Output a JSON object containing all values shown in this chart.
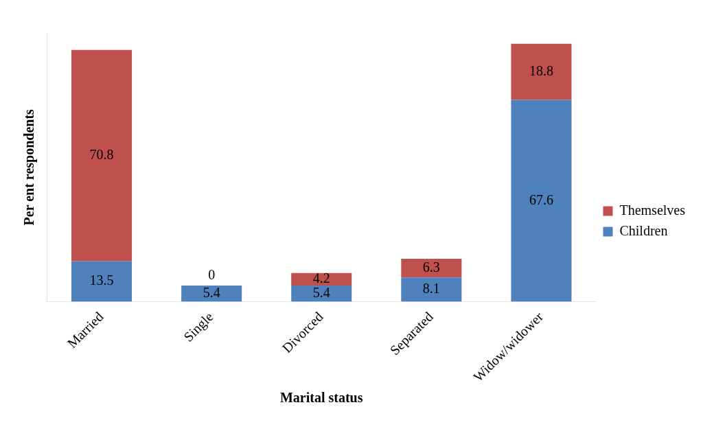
{
  "chart_data": {
    "type": "bar",
    "stacked": true,
    "xlabel": "Marital status",
    "ylabel": "Per ent respondents",
    "categories": [
      "Married",
      "Single",
      "Divorced",
      "Separated",
      "Widow/widower"
    ],
    "series": [
      {
        "name": "Children",
        "color": "#4f81bd",
        "values": [
          13.5,
          5.4,
          5.4,
          8.1,
          67.6
        ]
      },
      {
        "name": "Themselves",
        "color": "#c0504d",
        "values": [
          70.8,
          0,
          4.2,
          6.3,
          18.8
        ]
      }
    ],
    "data_labels": true,
    "legend": "right",
    "grid": false,
    "tick_labels": "x"
  }
}
